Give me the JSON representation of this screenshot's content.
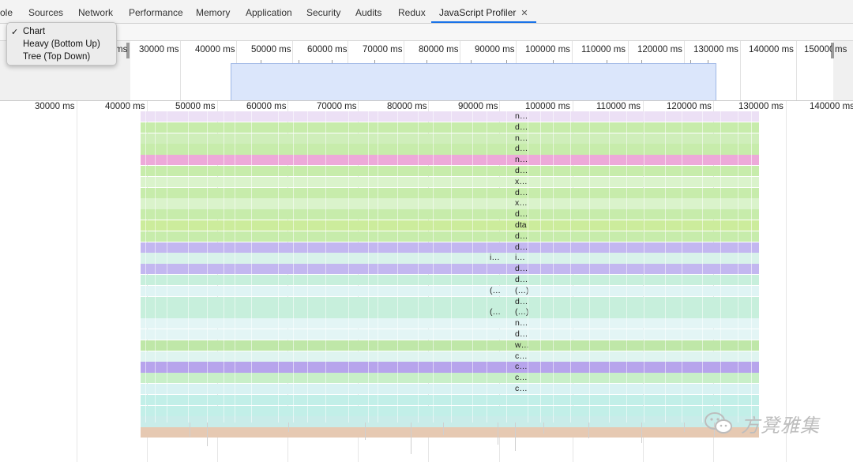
{
  "tabs": [
    {
      "label": "ole"
    },
    {
      "label": "Sources"
    },
    {
      "label": "Network"
    },
    {
      "label": "Performance"
    },
    {
      "label": "Memory"
    },
    {
      "label": "Application"
    },
    {
      "label": "Security"
    },
    {
      "label": "Audits"
    },
    {
      "label": "Redux"
    },
    {
      "label": "JavaScript Profiler",
      "active": true,
      "close": "✕"
    }
  ],
  "view_menu": {
    "check": "✓",
    "items": [
      "Chart",
      "Heavy (Bottom Up)",
      "Tree (Top Down)"
    ],
    "selected": "Chart"
  },
  "overview": {
    "labels": [
      "30000 ms",
      "40000 ms",
      "50000 ms",
      "60000 ms",
      "70000 ms",
      "80000 ms",
      "90000 ms",
      "100000 ms",
      "110000 ms",
      "120000 ms",
      "130000 ms",
      "140000 ms",
      "150000 ms"
    ],
    "left_fragment": "ms",
    "right_fragment": "ms"
  },
  "ruler": {
    "labels": [
      "30000 ms",
      "40000 ms",
      "50000 ms",
      "60000 ms",
      "70000 ms",
      "80000 ms",
      "90000 ms",
      "100000 ms",
      "110000 ms",
      "120000 ms",
      "130000 ms",
      "140000 ms"
    ]
  },
  "flame": {
    "rows": [
      {
        "color": "#ece0f5",
        "label": "n…"
      },
      {
        "color": "#c7ecab",
        "label": "d…"
      },
      {
        "color": "#cfeeba",
        "label": "n…"
      },
      {
        "color": "#c7ecab",
        "label": "d…"
      },
      {
        "color": "#eda9d9",
        "label": "n…"
      },
      {
        "color": "#c7ecab",
        "label": "d…"
      },
      {
        "color": "#daf3cb",
        "label": "x…"
      },
      {
        "color": "#c7ecab",
        "label": "d…"
      },
      {
        "color": "#daf3cb",
        "label": "x…"
      },
      {
        "color": "#c7ecab",
        "label": "d…"
      },
      {
        "color": "#ccec9c",
        "label": "dta"
      },
      {
        "color": "#c7ecab",
        "label": "d…"
      },
      {
        "color": "#c3b7f0",
        "label": "d…"
      },
      {
        "color": "#d8f2ea",
        "label": "i…",
        "left_label": "i…"
      },
      {
        "color": "#c3b7f0",
        "label": "d…"
      },
      {
        "color": "#c7efdc",
        "label": "d…"
      },
      {
        "color": "#dff4f4",
        "label": "(…)",
        "left_label": "(…"
      },
      {
        "color": "#c7efdc",
        "label": "d…"
      },
      {
        "color": "#c7efdc",
        "label": "(…)",
        "left_label": "(…"
      },
      {
        "color": "#e3f5f5",
        "label": "n…"
      },
      {
        "color": "#e3f5f5",
        "label": "d…"
      },
      {
        "color": "#bfe7a8",
        "label": "w…"
      },
      {
        "color": "#dff4f0",
        "label": "c…"
      },
      {
        "color": "#b7a4ec",
        "label": "c…"
      },
      {
        "color": "#c8efc8",
        "label": "c…"
      },
      {
        "color": "#d8f2f2",
        "label": "c…"
      },
      {
        "color": "#c2efe8",
        "label": ""
      },
      {
        "color": "#c2efe8",
        "label": ""
      },
      {
        "color": "#c9ece9",
        "label": ""
      },
      {
        "color": "#e6c9b2",
        "label": ""
      }
    ]
  },
  "watermark": {
    "text": "方凳雅集",
    "icon": "wechat-icon"
  }
}
